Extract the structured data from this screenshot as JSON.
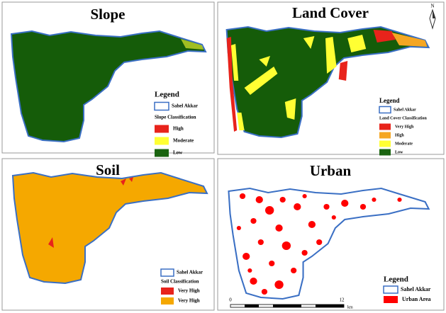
{
  "panels": [
    {
      "title": "Slope",
      "legend": {
        "title": "Legend",
        "boundary": "Sahel Akkar",
        "classification": "Slope Classification",
        "items": [
          {
            "label": "High",
            "color": "#e8231b"
          },
          {
            "label": "Moderate",
            "color": "#ffff33"
          },
          {
            "label": "Low",
            "color": "#1a6410"
          }
        ]
      }
    },
    {
      "title": "Land Cover",
      "legend": {
        "title": "Legend",
        "boundary": "Sahel Akkar",
        "classification": "Land Cover Classification",
        "items": [
          {
            "label": "Very High",
            "color": "#e8231b"
          },
          {
            "label": "High",
            "color": "#f5a623"
          },
          {
            "label": "Moderate",
            "color": "#ffff33"
          },
          {
            "label": "Low",
            "color": "#1a6410"
          }
        ]
      }
    },
    {
      "title": "Soil",
      "legend": {
        "boundary": "Sahel Akkar",
        "classification": "Soil Classification",
        "items": [
          {
            "label": "Very High",
            "color": "#e8231b"
          },
          {
            "label": "Very High",
            "color": "#f5a800"
          }
        ]
      }
    },
    {
      "title": "Urban",
      "legend": {
        "title": "Legend",
        "boundary": "Sahel Akkar",
        "items": [
          {
            "label": "Urban Area",
            "color": "#ff0000"
          }
        ]
      }
    }
  ],
  "north_arrow": "N",
  "scale_bar": {
    "start": "0",
    "end": "12",
    "unit": "km"
  }
}
